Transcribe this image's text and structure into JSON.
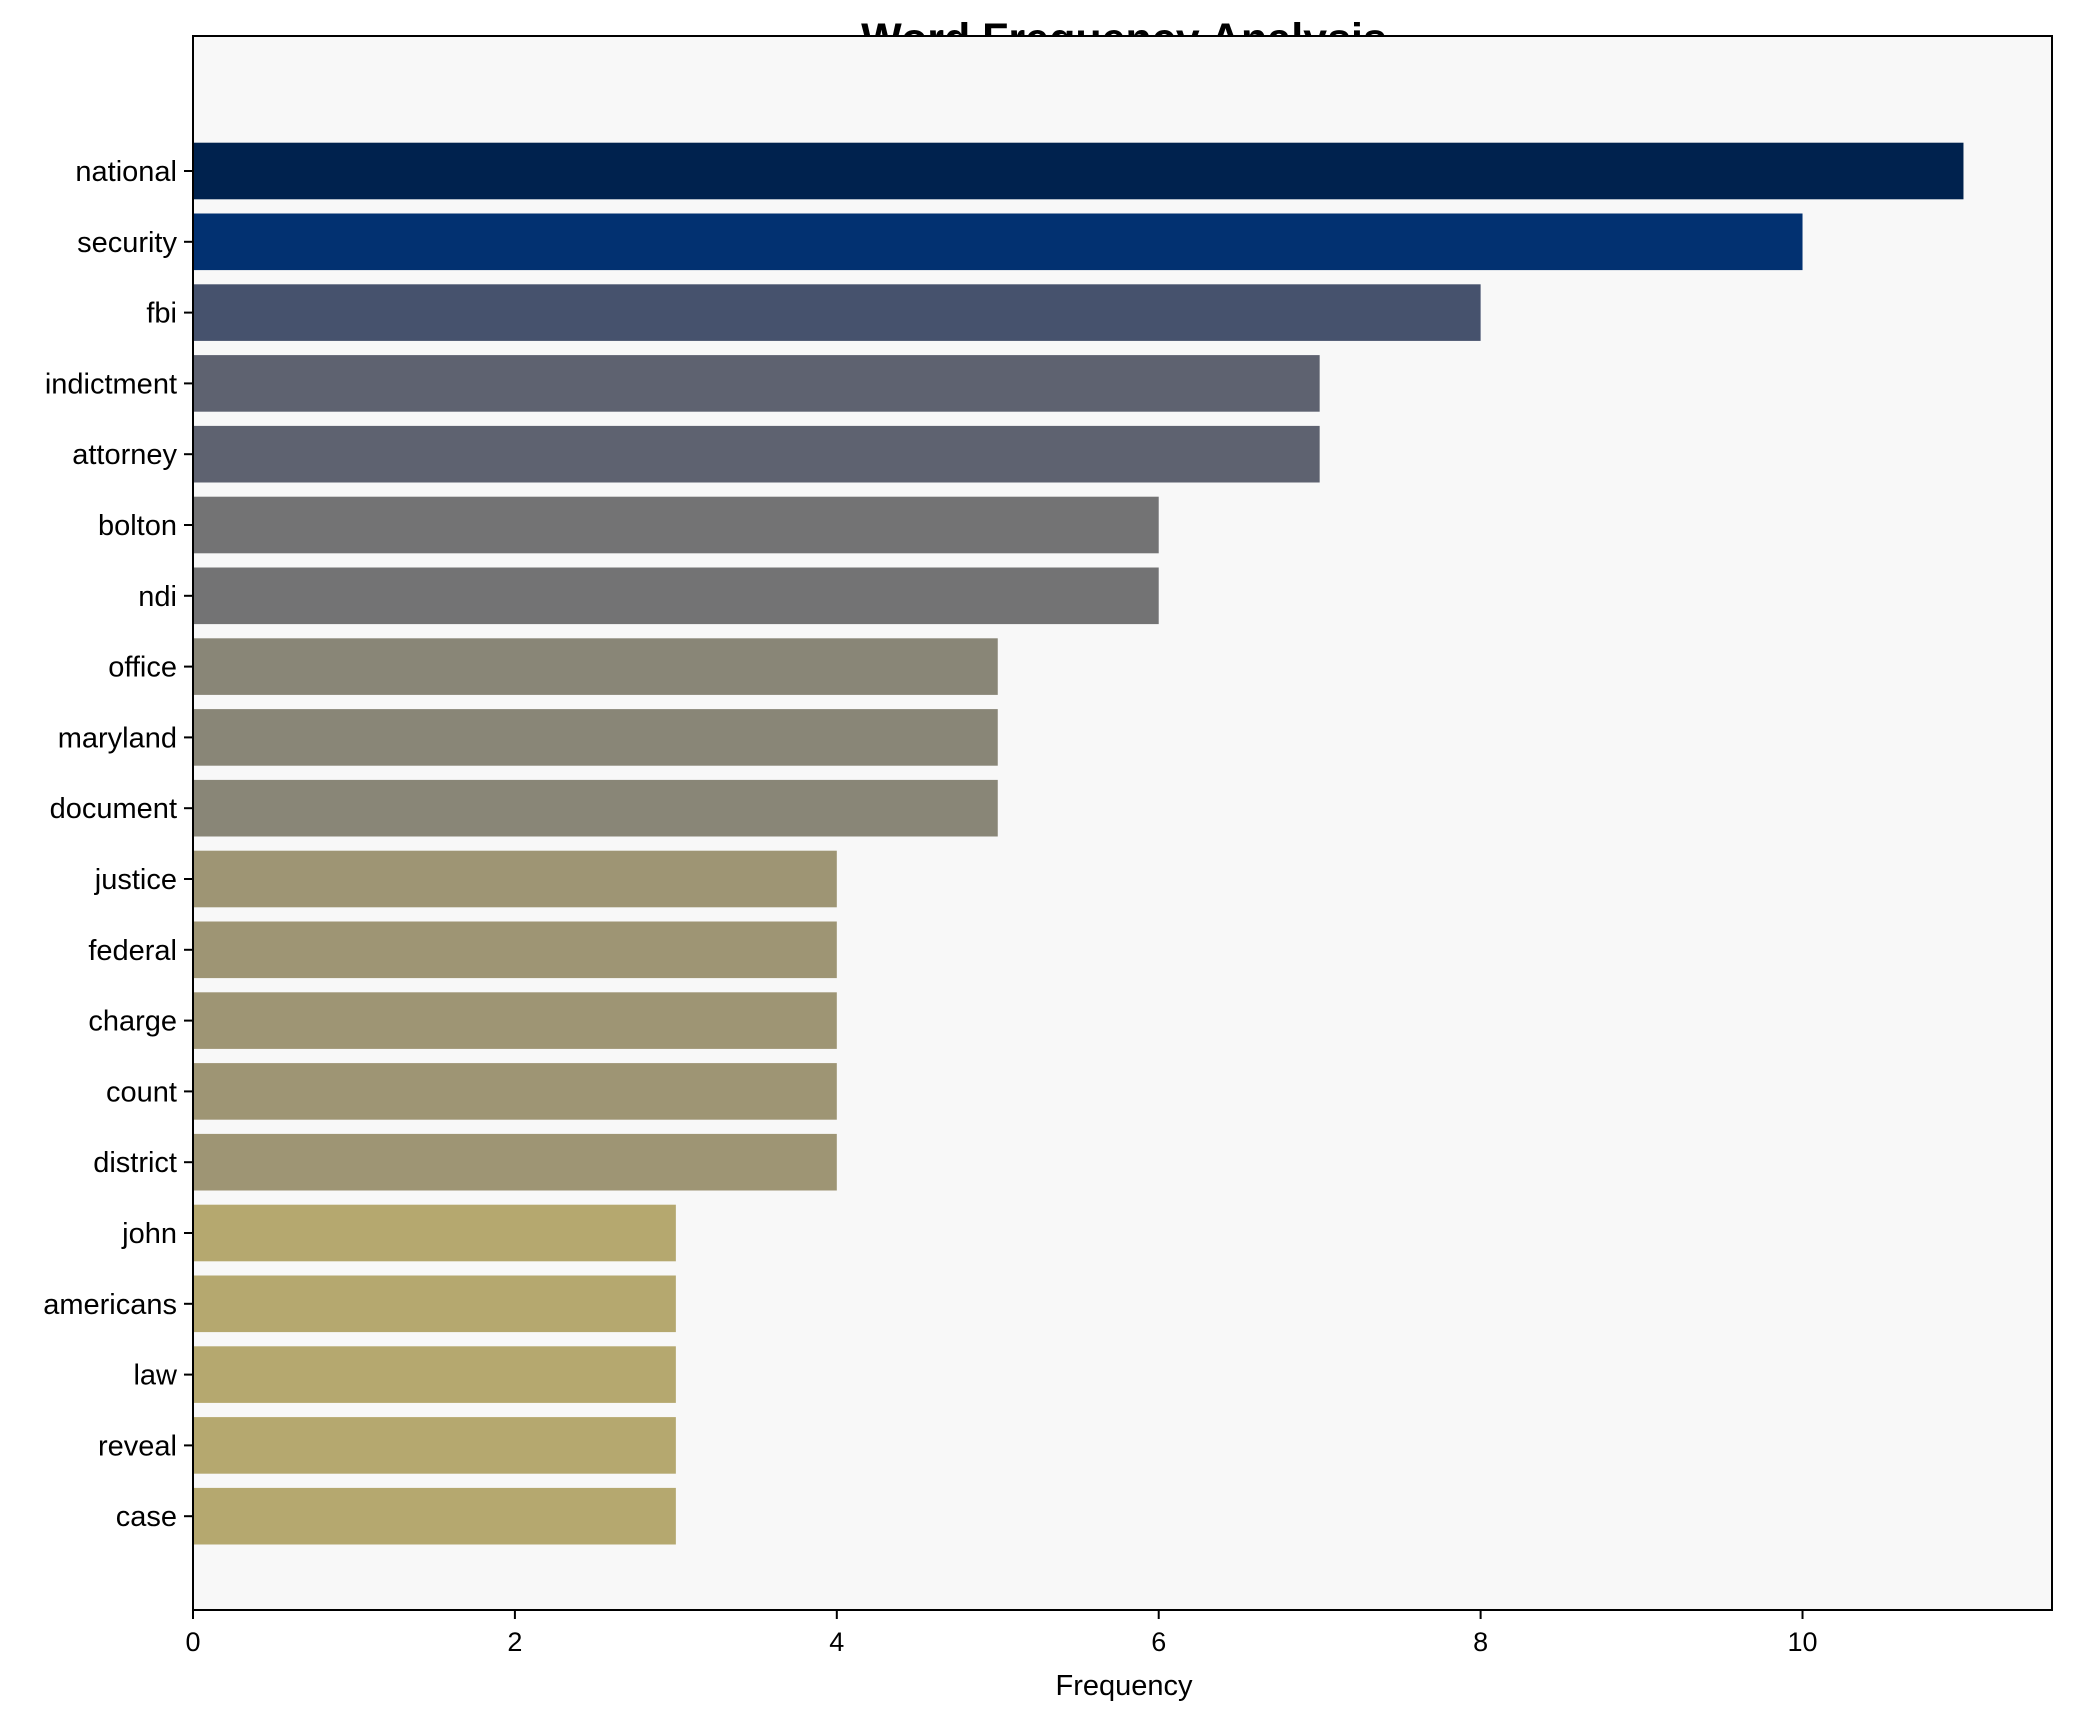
{
  "chart_data": {
    "type": "bar",
    "orientation": "horizontal",
    "title": "Word Frequency Analysis",
    "xlabel": "Frequency",
    "ylabel": "",
    "xlim": [
      0,
      11.55
    ],
    "xticks": [
      0,
      2,
      4,
      6,
      8,
      10
    ],
    "grid": false,
    "background": "#f8f8f8",
    "categories": [
      "national",
      "security",
      "fbi",
      "indictment",
      "attorney",
      "bolton",
      "ndi",
      "office",
      "maryland",
      "document",
      "justice",
      "federal",
      "charge",
      "count",
      "district",
      "john",
      "americans",
      "law",
      "reveal",
      "case"
    ],
    "values": [
      11,
      10,
      8,
      7,
      7,
      6,
      6,
      5,
      5,
      5,
      4,
      4,
      4,
      4,
      4,
      3,
      3,
      3,
      3,
      3
    ],
    "colors": [
      "#00224e",
      "#023171",
      "#46526d",
      "#5e6270",
      "#5e6270",
      "#737374",
      "#737374",
      "#898677",
      "#898677",
      "#898677",
      "#9e9574",
      "#9e9574",
      "#9e9574",
      "#9e9574",
      "#9e9574",
      "#b5a86f",
      "#b5a86f",
      "#b5a86f",
      "#b5a86f",
      "#b5a86f"
    ]
  }
}
